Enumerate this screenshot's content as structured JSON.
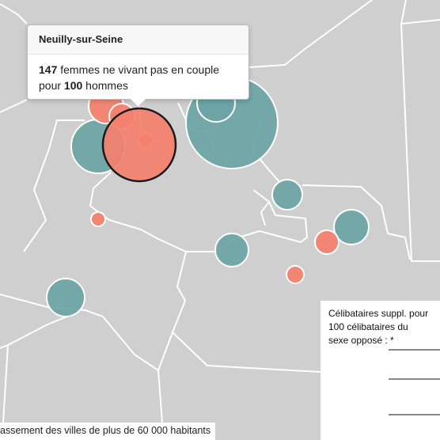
{
  "map": {
    "background_color": "#cfcfcf",
    "border_color": "#ffffff",
    "colors": {
      "more_women": "#f4806c",
      "more_men": "#6ba4a5",
      "selected_outline": "#1a1a1a"
    },
    "bubbles": [
      {
        "id": "large-teal-east",
        "category": "more_men",
        "selected": false
      },
      {
        "id": "teal-inner-north",
        "category": "more_men",
        "selected": false
      },
      {
        "id": "teal-west",
        "category": "more_men",
        "selected": false
      },
      {
        "id": "neuilly-sur-seine",
        "category": "more_women",
        "selected": true
      },
      {
        "id": "orange-north-1",
        "category": "more_women",
        "selected": false
      },
      {
        "id": "orange-north-2",
        "category": "more_women",
        "selected": false
      },
      {
        "id": "orange-small-center",
        "category": "more_women",
        "selected": false
      },
      {
        "id": "teal-center-east",
        "category": "more_men",
        "selected": false
      },
      {
        "id": "orange-small-west",
        "category": "more_women",
        "selected": false
      },
      {
        "id": "teal-east",
        "category": "more_men",
        "selected": false
      },
      {
        "id": "orange-east",
        "category": "more_women",
        "selected": false
      },
      {
        "id": "teal-center",
        "category": "more_men",
        "selected": false
      },
      {
        "id": "orange-small-southeast",
        "category": "more_women",
        "selected": false
      },
      {
        "id": "teal-southwest",
        "category": "more_men",
        "selected": false
      }
    ]
  },
  "tooltip": {
    "city": "Neuilly-sur-Seine",
    "women_value": "147",
    "women_text": " femmes ne vivant pas en couple",
    "line2_prefix": "pour ",
    "men_value": "100",
    "men_text": " hommes"
  },
  "legend": {
    "title": "Célibataires suppl. pour\n100 célibataires du\nsexe opposé : *"
  },
  "footer": {
    "text": "assement des villes de plus de 60 000 habitants"
  }
}
